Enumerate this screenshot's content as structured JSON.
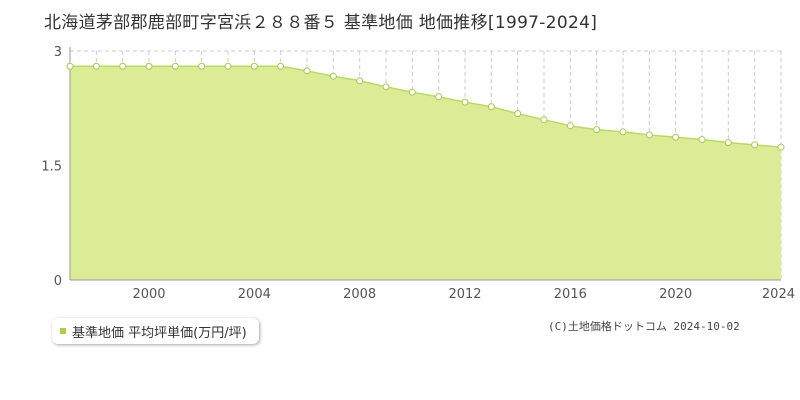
{
  "title": "北海道茅部郡鹿部町字宮浜２８８番５ 基準地価 地価推移[1997-2024]",
  "legend": {
    "label": "基準地価 平均坪単価(万円/坪)"
  },
  "copyright": "(C)土地価格ドットコム 2024-10-02",
  "colors": {
    "fill": "#dcec96",
    "line": "#b8d964",
    "marker_stroke": "#a8c850",
    "grid": "#cccccc",
    "swatch": "#a8d04c"
  },
  "chart_data": {
    "type": "area",
    "title": "",
    "xlabel": "",
    "ylabel": "",
    "xlim": [
      1997,
      2024
    ],
    "ylim": [
      0,
      3
    ],
    "x_ticks": [
      2000,
      2004,
      2008,
      2012,
      2016,
      2020,
      2024
    ],
    "y_ticks": [
      0,
      1.5,
      3
    ],
    "y_tick_labels": [
      "0",
      "1.5",
      "3"
    ],
    "grid": true,
    "series": [
      {
        "name": "基準地価 平均坪単価(万円/坪)",
        "x": [
          1997,
          1998,
          1999,
          2000,
          2001,
          2002,
          2003,
          2004,
          2005,
          2006,
          2007,
          2008,
          2009,
          2010,
          2011,
          2012,
          2013,
          2014,
          2015,
          2016,
          2017,
          2018,
          2019,
          2020,
          2021,
          2022,
          2023,
          2024
        ],
        "values": [
          2.8,
          2.8,
          2.8,
          2.8,
          2.8,
          2.8,
          2.8,
          2.8,
          2.8,
          2.74,
          2.67,
          2.61,
          2.53,
          2.46,
          2.4,
          2.33,
          2.27,
          2.18,
          2.1,
          2.02,
          1.97,
          1.94,
          1.9,
          1.87,
          1.84,
          1.8,
          1.77,
          1.74
        ]
      }
    ]
  }
}
